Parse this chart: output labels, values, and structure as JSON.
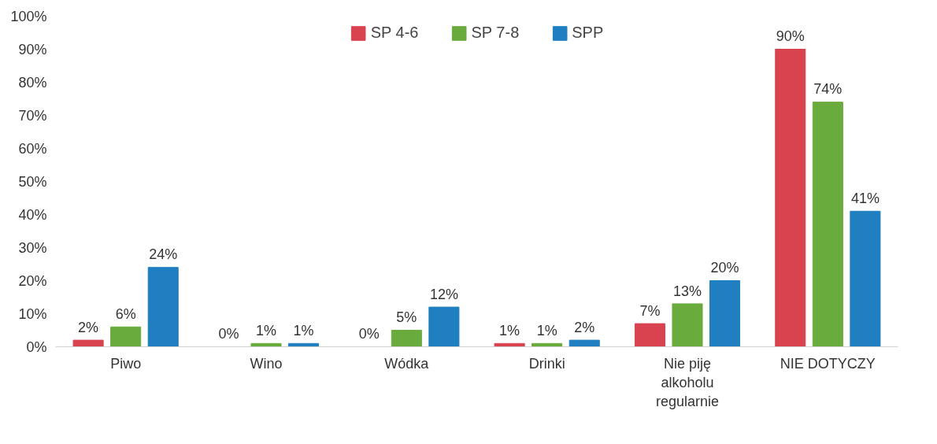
{
  "chart_data": {
    "type": "bar",
    "categories": [
      "Piwo",
      "Wino",
      "Wódka",
      "Drinki",
      "Nie piję alkoholu regularnie",
      "NIE DOTYCZY"
    ],
    "series": [
      {
        "name": "SP 4-6",
        "color": "#d9434f",
        "values": [
          2,
          0,
          0,
          1,
          7,
          90
        ],
        "value_labels": [
          "2%",
          "0%",
          "0%",
          "1%",
          "7%",
          "90%"
        ]
      },
      {
        "name": "SP 7-8",
        "color": "#6aab3e",
        "values": [
          6,
          1,
          5,
          1,
          13,
          74
        ],
        "value_labels": [
          "6%",
          "1%",
          "5%",
          "1%",
          "13%",
          "74%"
        ]
      },
      {
        "name": "SPP",
        "color": "#1f7fc0",
        "values": [
          24,
          1,
          12,
          2,
          20,
          41
        ],
        "value_labels": [
          "24%",
          "1%",
          "12%",
          "2%",
          "20%",
          "41%"
        ]
      }
    ],
    "ylim": [
      0,
      100
    ],
    "yticks": [
      {
        "value": 0,
        "label": "0%"
      },
      {
        "value": 10,
        "label": "10%"
      },
      {
        "value": 20,
        "label": "20%"
      },
      {
        "value": 30,
        "label": "30%"
      },
      {
        "value": 40,
        "label": "40%"
      },
      {
        "value": 50,
        "label": "50%"
      },
      {
        "value": 60,
        "label": "60%"
      },
      {
        "value": 70,
        "label": "70%"
      },
      {
        "value": 80,
        "label": "80%"
      },
      {
        "value": 90,
        "label": "90%"
      },
      {
        "value": 100,
        "label": "100%"
      }
    ],
    "grid": false,
    "legend": "top"
  }
}
